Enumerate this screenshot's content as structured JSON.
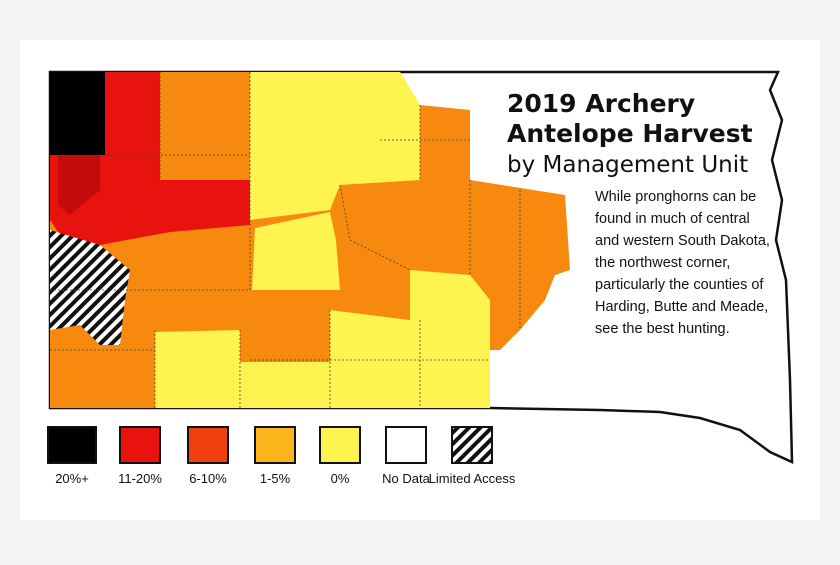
{
  "header": {
    "title_lines": [
      "2019 Archery",
      "Antelope Harvest",
      "by Management Unit"
    ]
  },
  "description": "While pronghorns can be found in much of central and western South Dakota, the northwest corner, particularly the counties of Harding, Butte and Meade, see the best hunting.",
  "legend": {
    "items": [
      {
        "label": "20%+"
      },
      {
        "label": "11-20%"
      },
      {
        "label": "6-10%"
      },
      {
        "label": "1-5%"
      },
      {
        "label": "0%"
      },
      {
        "label": "No Data"
      },
      {
        "label": "Limited Access"
      }
    ]
  }
}
